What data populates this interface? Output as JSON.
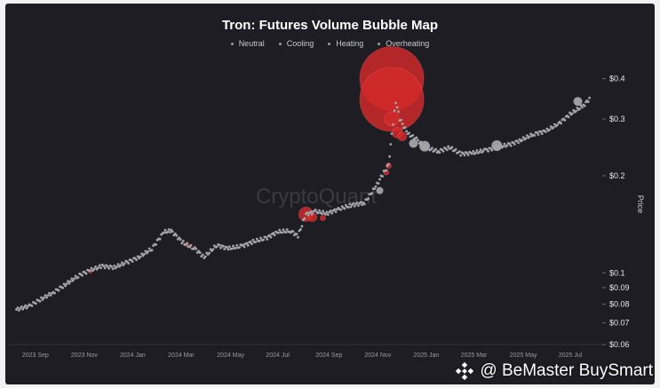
{
  "credit": {
    "handle": "@ BeMaster BuySmart",
    "icon": "binance-diamond-icon"
  },
  "chart_data": {
    "type": "scatter",
    "title": "Tron: Futures Volume Bubble Map",
    "watermark": "CryptoQuant",
    "legend": [
      {
        "name": "Neutral",
        "color": "#9a9aa0"
      },
      {
        "name": "Cooling",
        "color": "#b8b8bc"
      },
      {
        "name": "Heating",
        "color": "#c8c8cc"
      },
      {
        "name": "Overheating",
        "color": "#d42a2a"
      }
    ],
    "ylabel": "Price",
    "yscale": "log",
    "ylim": [
      0.06,
      0.45
    ],
    "y_ticks": [
      {
        "value": 0.4,
        "label": "$0.4"
      },
      {
        "value": 0.3,
        "label": "$0.3"
      },
      {
        "value": 0.2,
        "label": "$0.2"
      },
      {
        "value": 0.1,
        "label": "$0.1"
      },
      {
        "value": 0.09,
        "label": "$0.09"
      },
      {
        "value": 0.08,
        "label": "$0.08"
      },
      {
        "value": 0.07,
        "label": "$0.07"
      },
      {
        "value": 0.06,
        "label": "$0.06"
      }
    ],
    "xlim": [
      "2023-08-20",
      "2025-08-20"
    ],
    "x_ticks": [
      {
        "date": "2023-09-01",
        "label": "2023 Sep"
      },
      {
        "date": "2023-11-01",
        "label": "2023 Nov"
      },
      {
        "date": "2024-01-01",
        "label": "2024 Jan"
      },
      {
        "date": "2024-03-01",
        "label": "2024 Mar"
      },
      {
        "date": "2024-05-01",
        "label": "2024 May"
      },
      {
        "date": "2024-07-01",
        "label": "2024 Jul"
      },
      {
        "date": "2024-09-01",
        "label": "2024 Sep"
      },
      {
        "date": "2024-11-01",
        "label": "2024 Nov"
      },
      {
        "date": "2025-01-01",
        "label": "2025 Jan"
      },
      {
        "date": "2025-03-01",
        "label": "2025 Mar"
      },
      {
        "date": "2025-05-01",
        "label": "2025 May"
      },
      {
        "date": "2025-07-01",
        "label": "2025 Jul"
      }
    ],
    "price_series": [
      [
        "2023-08-25",
        0.077
      ],
      [
        "2023-09-10",
        0.079
      ],
      [
        "2023-09-25",
        0.083
      ],
      [
        "2023-10-10",
        0.087
      ],
      [
        "2023-10-25",
        0.092
      ],
      [
        "2023-11-10",
        0.098
      ],
      [
        "2023-11-25",
        0.102
      ],
      [
        "2023-12-10",
        0.105
      ],
      [
        "2023-12-25",
        0.104
      ],
      [
        "2024-01-10",
        0.108
      ],
      [
        "2024-01-25",
        0.112
      ],
      [
        "2024-02-10",
        0.119
      ],
      [
        "2024-02-25",
        0.134
      ],
      [
        "2024-03-05",
        0.135
      ],
      [
        "2024-03-20",
        0.124
      ],
      [
        "2024-04-05",
        0.118
      ],
      [
        "2024-04-15",
        0.112
      ],
      [
        "2024-05-01",
        0.122
      ],
      [
        "2024-05-15",
        0.119
      ],
      [
        "2024-06-01",
        0.121
      ],
      [
        "2024-06-15",
        0.125
      ],
      [
        "2024-07-01",
        0.128
      ],
      [
        "2024-07-15",
        0.134
      ],
      [
        "2024-08-01",
        0.135
      ],
      [
        "2024-08-10",
        0.13
      ],
      [
        "2024-08-20",
        0.152
      ],
      [
        "2024-09-01",
        0.155
      ],
      [
        "2024-09-15",
        0.153
      ],
      [
        "2024-10-01",
        0.158
      ],
      [
        "2024-10-15",
        0.162
      ],
      [
        "2024-11-01",
        0.165
      ],
      [
        "2024-11-15",
        0.185
      ],
      [
        "2024-11-25",
        0.205
      ],
      [
        "2024-12-01",
        0.215
      ],
      [
        "2024-12-05",
        0.27
      ],
      [
        "2024-12-10",
        0.34
      ],
      [
        "2024-12-15",
        0.3
      ],
      [
        "2024-12-25",
        0.27
      ],
      [
        "2025-01-05",
        0.26
      ],
      [
        "2025-01-15",
        0.245
      ],
      [
        "2025-02-01",
        0.238
      ],
      [
        "2025-02-15",
        0.245
      ],
      [
        "2025-03-01",
        0.234
      ],
      [
        "2025-03-15",
        0.235
      ],
      [
        "2025-04-01",
        0.24
      ],
      [
        "2025-04-15",
        0.245
      ],
      [
        "2025-05-01",
        0.25
      ],
      [
        "2025-05-15",
        0.258
      ],
      [
        "2025-06-01",
        0.27
      ],
      [
        "2025-06-15",
        0.275
      ],
      [
        "2025-07-01",
        0.29
      ],
      [
        "2025-07-15",
        0.31
      ],
      [
        "2025-08-01",
        0.33
      ],
      [
        "2025-08-10",
        0.35
      ]
    ],
    "bubbles": [
      {
        "date": "2023-11-25",
        "price": 0.101,
        "status": "Overheating",
        "size": 2
      },
      {
        "date": "2024-03-25",
        "price": 0.122,
        "status": "Overheating",
        "size": 2
      },
      {
        "date": "2024-08-20",
        "price": 0.152,
        "status": "Overheating",
        "size": 8
      },
      {
        "date": "2024-08-28",
        "price": 0.149,
        "status": "Overheating",
        "size": 5
      },
      {
        "date": "2024-09-10",
        "price": 0.148,
        "status": "Overheating",
        "size": 3
      },
      {
        "date": "2024-11-28",
        "price": 0.205,
        "status": "Overheating",
        "size": 3
      },
      {
        "date": "2024-12-01",
        "price": 0.215,
        "status": "Overheating",
        "size": 3
      },
      {
        "date": "2024-12-05",
        "price": 0.4,
        "status": "Overheating",
        "size": 36
      },
      {
        "date": "2024-12-05",
        "price": 0.345,
        "status": "Overheating",
        "size": 36
      },
      {
        "date": "2024-12-05",
        "price": 0.3,
        "status": "Overheating",
        "size": 8
      },
      {
        "date": "2024-12-12",
        "price": 0.272,
        "status": "Overheating",
        "size": 6
      },
      {
        "date": "2024-12-18",
        "price": 0.265,
        "status": "Overheating",
        "size": 5
      },
      {
        "date": "2025-01-01",
        "price": 0.252,
        "status": "Heating",
        "size": 5
      },
      {
        "date": "2025-01-15",
        "price": 0.247,
        "status": "Heating",
        "size": 6
      },
      {
        "date": "2025-04-15",
        "price": 0.248,
        "status": "Heating",
        "size": 6
      },
      {
        "date": "2025-07-25",
        "price": 0.34,
        "status": "Heating",
        "size": 5
      },
      {
        "date": "2024-11-20",
        "price": 0.18,
        "status": "Heating",
        "size": 4
      }
    ]
  }
}
